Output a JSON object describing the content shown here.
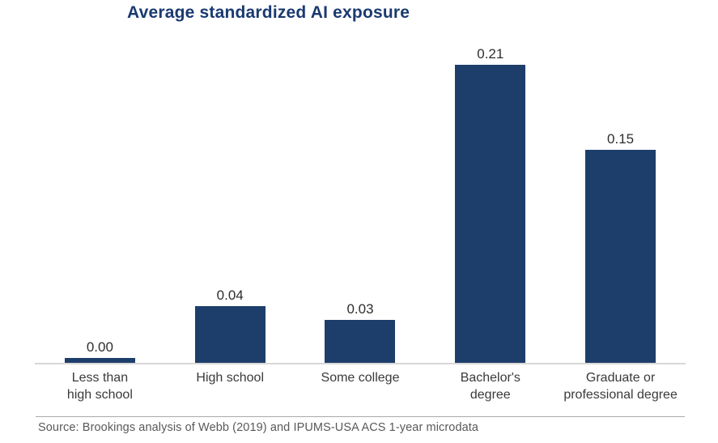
{
  "chart": {
    "title": "Average standardized AI exposure"
  },
  "chart_data": {
    "type": "bar",
    "title": "Average standardized AI exposure",
    "categories": [
      "Less than\nhigh school",
      "High school",
      "Some college",
      "Bachelor's\ndegree",
      "Graduate or\nprofessional degree"
    ],
    "values": [
      0.0,
      0.04,
      0.03,
      0.21,
      0.15
    ],
    "value_labels": [
      "0.00",
      "0.04",
      "0.03",
      "0.21",
      "0.15"
    ],
    "xlabel": "",
    "ylabel": "",
    "ylim": [
      0,
      0.22
    ],
    "grid": false,
    "legend": "none",
    "bar_color": "#1d3e6a"
  },
  "source": {
    "text": "Source: Brookings analysis of Webb (2019) and IPUMS-USA ACS 1-year microdata"
  },
  "colors": {
    "bar": "#1d3e6a",
    "title": "#1a3a70",
    "axis_line": "#d8d8d8",
    "divider": "#a7a9ac",
    "category_text": "#3a3a3a",
    "source_text": "#58595b"
  }
}
